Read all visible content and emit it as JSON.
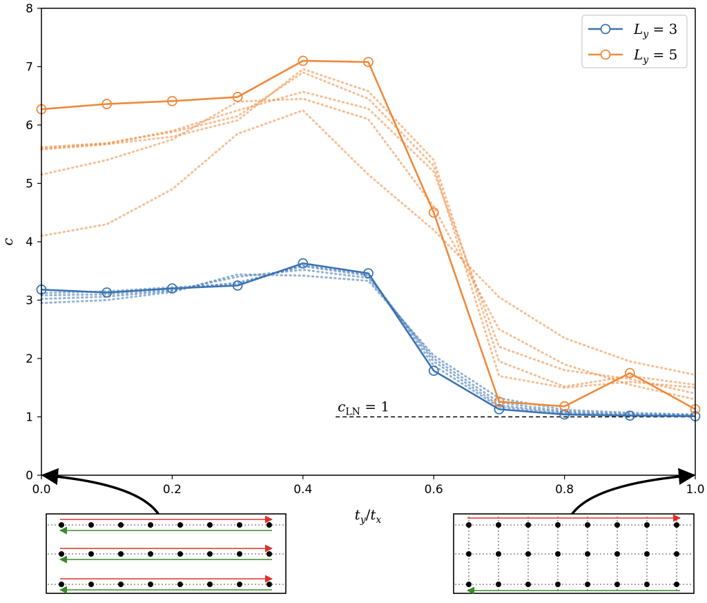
{
  "chart_data": {
    "type": "line",
    "xlabel": "t_y / t_x",
    "ylabel": "c",
    "xlim": [
      0.0,
      1.0
    ],
    "ylim": [
      0,
      8
    ],
    "xticks": [
      "0.0",
      "0.2",
      "0.4",
      "0.6",
      "0.8",
      "1.0"
    ],
    "yticks": [
      "0",
      "1",
      "2",
      "3",
      "4",
      "5",
      "6",
      "7",
      "8"
    ],
    "x": [
      0.0,
      0.1,
      0.2,
      0.3,
      0.4,
      0.5,
      0.6,
      0.7,
      0.8,
      0.9,
      1.0
    ],
    "series": [
      {
        "name": "L_y = 3",
        "color": "#3b73b2",
        "style": "solid-circles",
        "values": [
          3.18,
          3.13,
          3.2,
          3.25,
          3.63,
          3.46,
          1.79,
          1.13,
          1.04,
          1.02,
          1.01
        ]
      },
      {
        "name": "L_y = 5",
        "color": "#f0883a",
        "style": "solid-circles",
        "values": [
          6.27,
          6.36,
          6.41,
          6.48,
          7.1,
          7.08,
          4.5,
          1.26,
          1.18,
          1.75,
          1.13
        ]
      }
    ],
    "dotted_series": [
      {
        "color": "#3b73b2",
        "values": [
          3.08,
          3.1,
          3.18,
          3.3,
          3.58,
          3.42,
          1.95,
          1.2,
          1.07,
          1.03,
          1.02
        ]
      },
      {
        "color": "#3b73b2",
        "values": [
          3.02,
          3.06,
          3.16,
          3.4,
          3.52,
          3.38,
          2.0,
          1.25,
          1.09,
          1.05,
          1.03
        ]
      },
      {
        "color": "#3b73b2",
        "values": [
          2.95,
          3.0,
          3.14,
          3.44,
          3.42,
          3.33,
          2.05,
          1.32,
          1.12,
          1.07,
          1.04
        ]
      },
      {
        "color": "#3b73b2",
        "values": [
          3.12,
          3.15,
          3.22,
          3.27,
          3.6,
          3.44,
          1.88,
          1.17,
          1.05,
          1.03,
          1.02
        ]
      },
      {
        "color": "#f0883a",
        "values": [
          5.58,
          5.67,
          5.8,
          6.08,
          6.96,
          6.58,
          5.4,
          1.95,
          1.52,
          1.7,
          1.55
        ]
      },
      {
        "color": "#f0883a",
        "values": [
          5.6,
          5.68,
          5.9,
          6.25,
          6.57,
          6.28,
          5.2,
          2.2,
          1.8,
          1.65,
          1.4
        ]
      },
      {
        "color": "#f0883a",
        "values": [
          5.15,
          5.4,
          5.75,
          6.4,
          6.45,
          6.1,
          4.6,
          2.5,
          1.9,
          1.55,
          1.3
        ]
      },
      {
        "color": "#f0883a",
        "values": [
          4.1,
          4.3,
          4.9,
          5.85,
          6.25,
          5.15,
          4.2,
          3.05,
          2.35,
          1.95,
          1.72
        ]
      },
      {
        "color": "#f0883a",
        "values": [
          5.62,
          5.69,
          5.88,
          6.15,
          6.9,
          6.45,
          5.3,
          1.7,
          1.5,
          1.6,
          1.5
        ]
      }
    ],
    "reference_line": {
      "label": "c_LN = 1",
      "y": 1,
      "x_range": [
        0.45,
        1.0
      ]
    },
    "legend": {
      "placement": "top-right",
      "entries": [
        "L_y = 3",
        "L_y = 5"
      ]
    },
    "grid": false
  }
}
